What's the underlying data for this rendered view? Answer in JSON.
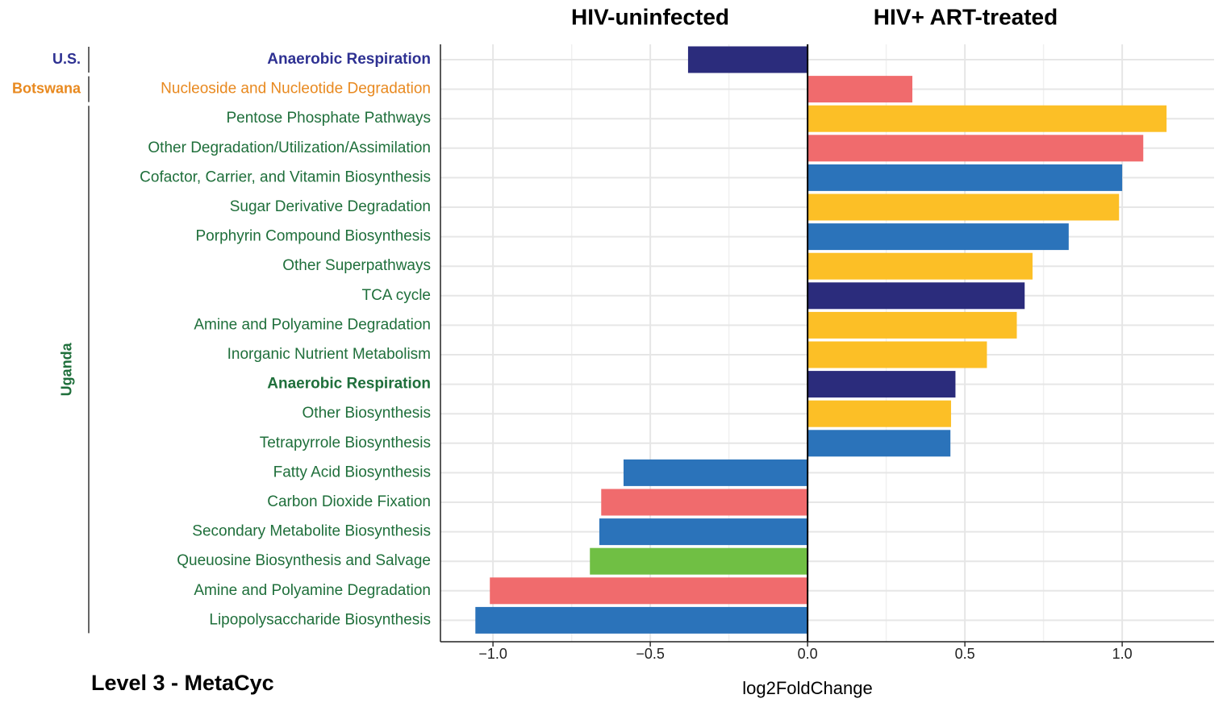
{
  "chart_data": {
    "type": "bar",
    "orientation": "horizontal",
    "panel_titles": [
      "HIV-uninfected",
      "HIV+ ART-treated"
    ],
    "title": "Level 3 - MetaCyc",
    "x_label": "log2FoldChange",
    "bold": "Anaerobic Respiration",
    "grid": true,
    "xlim": [
      -1.167,
      1.292
    ],
    "xticks": [
      {
        "value": -1.0,
        "label": "−1.0"
      },
      {
        "value": -0.5,
        "label": "−0.5"
      },
      {
        "value": 0,
        "label": "0.0"
      },
      0.5,
      {
        "value": 1.0,
        "label": "1.0"
      }
    ],
    "groups": [
      {
        "name": "U.S.",
        "color": "#2e3192",
        "categories": [
          "Anaerobic Respiration"
        ],
        "values": [
          -0.38
        ],
        "bar_colors": [
          "#2b2c7c"
        ]
      },
      {
        "name": "Botswana",
        "color": "#e8891f",
        "categories": [
          "Nucleoside and Nucleotide Degradation"
        ],
        "values": [
          0.333
        ],
        "bar_colors": [
          "#f06b6d"
        ]
      },
      {
        "name": "Uganda",
        "color": "#1f6f3b",
        "categories": [
          "Pentose Phosphate Pathways",
          "Other Degradation/Utilization/Assimilation",
          "Cofactor, Carrier, and Vitamin Biosynthesis",
          "Sugar Derivative Degradation",
          "Porphyrin Compound Biosynthesis",
          "Other Superpathways",
          "TCA cycle",
          "Amine and Polyamine Degradation",
          "Inorganic Nutrient Metabolism",
          "Anaerobic Respiration",
          "Other Biosynthesis",
          "Tetrapyrrole Biosynthesis",
          "Fatty Acid Biosynthesis",
          "Carbon Dioxide Fixation",
          "Secondary Metabolite Biosynthesis",
          "Queuosine Biosynthesis and Salvage",
          "Amine and Polyamine Degradation",
          "Lipopolysaccharide Biosynthesis"
        ],
        "values": [
          1.141,
          1.067,
          1.0,
          0.99,
          0.83,
          0.715,
          0.69,
          0.665,
          0.57,
          0.47,
          0.456,
          0.454,
          -0.585,
          -0.656,
          -0.662,
          -0.692,
          -1.01,
          -1.056
        ],
        "bar_colors": [
          "#fcbf26",
          "#f06b6d",
          "#2b73ba",
          "#fcbf26",
          "#2b73ba",
          "#fcbf26",
          "#2b2c7c",
          "#fcbf26",
          "#fcbf26",
          "#2b2c7c",
          "#fcbf26",
          "#2b73ba",
          "#2b73ba",
          "#f06b6d",
          "#2b73ba",
          "#70bf44",
          "#f06b6d",
          "#2b73ba"
        ]
      }
    ]
  }
}
